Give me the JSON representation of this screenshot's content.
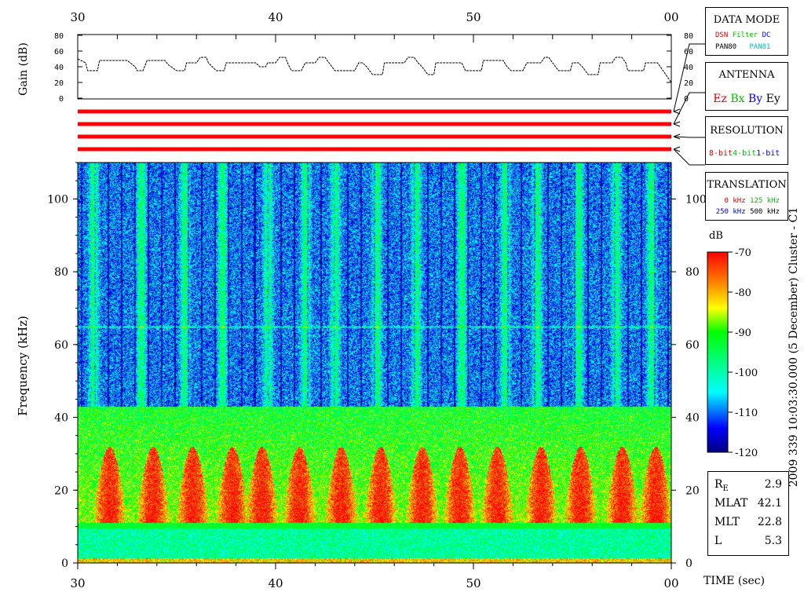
{
  "chart_data": [
    {
      "type": "line",
      "name": "gain-panel",
      "ylabel": "Gain (dB)",
      "yticks": [
        0,
        20,
        40,
        60,
        80
      ],
      "ylim": [
        0,
        80
      ],
      "xticks_top": [
        "30",
        "40",
        "50",
        "00"
      ],
      "x_range_sec": [
        30,
        60
      ],
      "segments": [
        [
          30.0,
          50
        ],
        [
          30.4,
          45
        ],
        [
          30.5,
          35
        ],
        [
          31.0,
          35
        ],
        [
          31.1,
          48
        ],
        [
          32.5,
          48
        ],
        [
          32.9,
          40
        ],
        [
          33.0,
          35
        ],
        [
          33.3,
          35
        ],
        [
          33.5,
          48
        ],
        [
          34.4,
          48
        ],
        [
          34.6,
          42
        ],
        [
          35.0,
          35
        ],
        [
          35.4,
          35
        ],
        [
          35.5,
          45
        ],
        [
          36.0,
          45
        ],
        [
          36.2,
          52
        ],
        [
          36.5,
          52
        ],
        [
          36.6,
          45
        ],
        [
          37.0,
          35
        ],
        [
          37.4,
          35
        ],
        [
          37.5,
          45
        ],
        [
          39.0,
          45
        ],
        [
          39.2,
          40
        ],
        [
          39.5,
          40
        ],
        [
          39.6,
          45
        ],
        [
          40.0,
          45
        ],
        [
          40.2,
          52
        ],
        [
          40.5,
          52
        ],
        [
          40.6,
          45
        ],
        [
          40.8,
          35
        ],
        [
          41.3,
          35
        ],
        [
          41.5,
          45
        ],
        [
          42.0,
          45
        ],
        [
          42.2,
          52
        ],
        [
          42.5,
          52
        ],
        [
          42.7,
          45
        ],
        [
          43.0,
          35
        ],
        [
          44.0,
          35
        ],
        [
          44.2,
          45
        ],
        [
          44.4,
          45
        ],
        [
          44.6,
          40
        ],
        [
          44.9,
          30
        ],
        [
          45.4,
          30
        ],
        [
          45.5,
          45
        ],
        [
          46.5,
          45
        ],
        [
          46.7,
          52
        ],
        [
          47.0,
          52
        ],
        [
          47.2,
          45
        ],
        [
          47.4,
          40
        ],
        [
          47.7,
          30
        ],
        [
          48.0,
          30
        ],
        [
          48.1,
          45
        ],
        [
          49.4,
          45
        ],
        [
          49.6,
          35
        ],
        [
          50.4,
          35
        ],
        [
          50.5,
          48
        ],
        [
          51.5,
          48
        ],
        [
          51.7,
          40
        ],
        [
          51.9,
          35
        ],
        [
          52.5,
          35
        ],
        [
          52.7,
          45
        ],
        [
          53.4,
          45
        ],
        [
          53.6,
          52
        ],
        [
          53.8,
          52
        ],
        [
          54.0,
          45
        ],
        [
          54.3,
          35
        ],
        [
          54.9,
          35
        ],
        [
          55.0,
          45
        ],
        [
          55.3,
          45
        ],
        [
          55.5,
          40
        ],
        [
          55.8,
          30
        ],
        [
          56.3,
          30
        ],
        [
          56.4,
          45
        ],
        [
          57.0,
          45
        ],
        [
          57.2,
          52
        ],
        [
          57.5,
          52
        ],
        [
          57.7,
          45
        ],
        [
          57.8,
          35
        ],
        [
          58.6,
          35
        ],
        [
          58.7,
          45
        ],
        [
          59.3,
          45
        ],
        [
          59.5,
          38
        ],
        [
          60.0,
          20
        ]
      ]
    },
    {
      "type": "heatmap",
      "name": "spectrogram",
      "ylabel": "Frequency (kHz)",
      "xlabel": "TIME (sec)",
      "yticks": [
        0,
        20,
        40,
        60,
        80,
        100
      ],
      "ylim": [
        0,
        110
      ],
      "xticks": [
        "30",
        "40",
        "50",
        "00"
      ],
      "x_range_sec": [
        30,
        60
      ],
      "colorbar": {
        "unit": "dB",
        "range": [
          -120,
          -70
        ],
        "ticks": [
          -70,
          -80,
          -90,
          -100,
          -110,
          -120
        ]
      },
      "bursts_center_sec": [
        31.6,
        33.8,
        35.8,
        37.8,
        39.3,
        41.2,
        43.3,
        45.3,
        47.4,
        49.3,
        51.2,
        53.4,
        55.4,
        57.5,
        59.2
      ],
      "band_floor_khz": 11,
      "burst_top_khz": 32,
      "line_khz": 65,
      "high_intensity_stripes_sec": [
        30.8,
        33.2,
        35.4,
        37.3,
        39.6,
        41.5,
        43.0,
        45.1,
        47.1,
        49.4,
        51.6,
        53.2,
        55.3,
        57.2,
        59.0
      ]
    }
  ],
  "time_axis": {
    "labels": [
      "30",
      "40",
      "50",
      "00"
    ]
  },
  "panels": {
    "data_mode": {
      "title": "DATA MODE",
      "items": [
        {
          "text": "DSN",
          "color": "#e00000"
        },
        {
          "text": "Filter",
          "color": "#00c000"
        },
        {
          "text": "DC",
          "color": "#0000ff"
        },
        {
          "text": "PAN80",
          "color": "#000000"
        },
        {
          "text": "PAN81",
          "color": "#00c0c0"
        }
      ]
    },
    "antenna": {
      "title": "ANTENNA",
      "items": [
        {
          "text": "Ez",
          "color": "#e00000"
        },
        {
          "text": "Bx",
          "color": "#00c000"
        },
        {
          "text": "By",
          "color": "#0000ff"
        },
        {
          "text": "Ey",
          "color": "#000000"
        }
      ]
    },
    "resolution": {
      "title": "RESOLUTION",
      "items": [
        {
          "text": "8-bit",
          "color": "#e00000"
        },
        {
          "text": "4-bit",
          "color": "#00c000"
        },
        {
          "text": "1-bit",
          "color": "#0000ff"
        }
      ]
    },
    "translation": {
      "title": "TRANSLATION",
      "items": [
        {
          "text": "0 kHz",
          "color": "#e00000"
        },
        {
          "text": "125 kHz",
          "color": "#00c000"
        },
        {
          "text": "250 kHz",
          "color": "#0000ff"
        },
        {
          "text": "500 kHz",
          "color": "#000000"
        }
      ]
    }
  },
  "mode_bars": {
    "color": "#ff0000",
    "count": 4
  },
  "side_title": "2009 339 10:03:30.000 (5 December)     Cluster - C1",
  "ephemeris": [
    {
      "label": "R",
      "sub": "E",
      "value": "2.9"
    },
    {
      "label": "MLAT",
      "sub": "",
      "value": "42.1"
    },
    {
      "label": "MLT",
      "sub": "",
      "value": "22.8"
    },
    {
      "label": "L",
      "sub": "",
      "value": "5.3"
    }
  ]
}
